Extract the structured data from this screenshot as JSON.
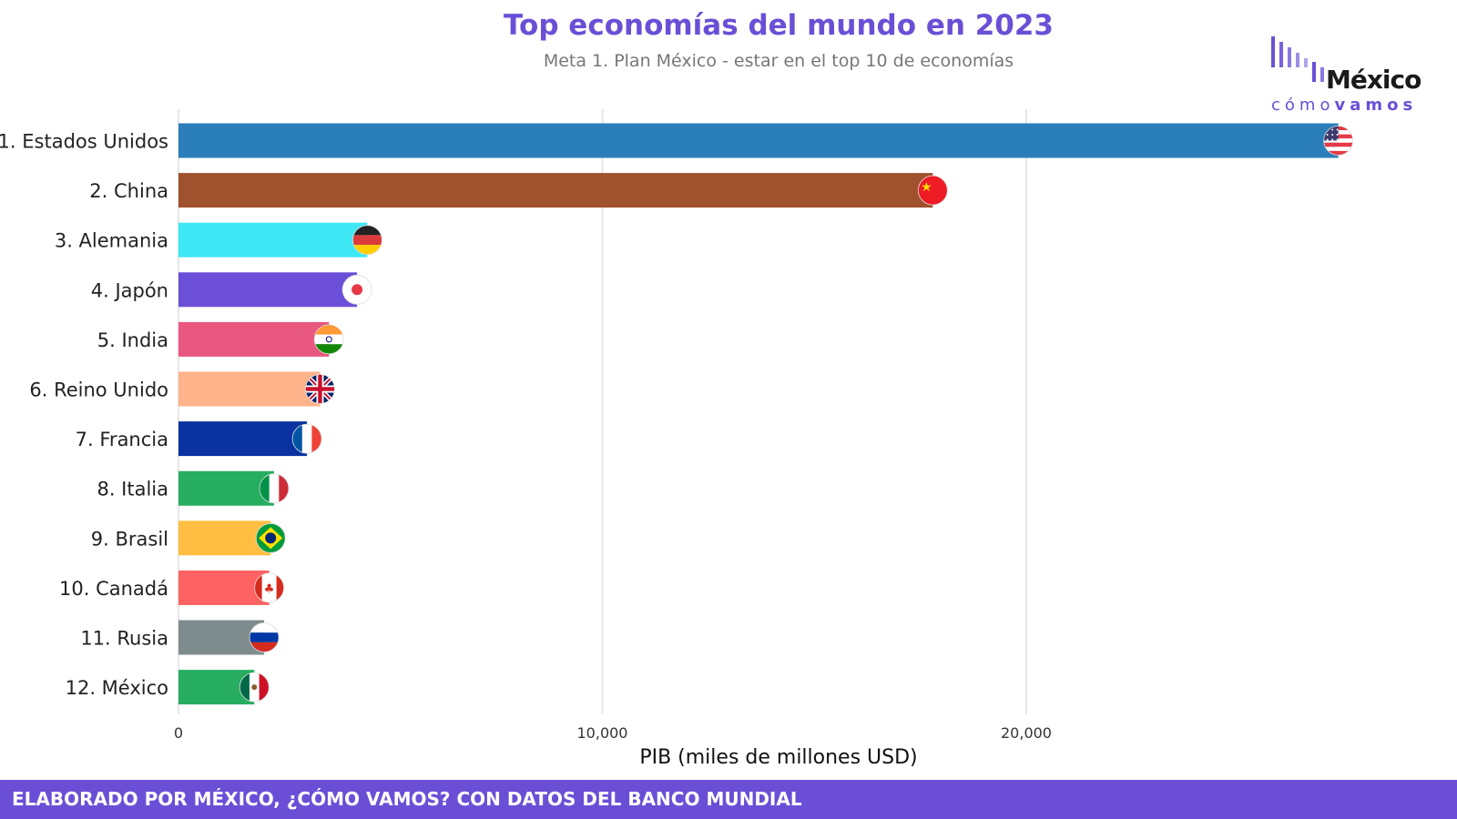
{
  "header": {
    "title": "Top economías del mundo en 2023",
    "subtitle": "Meta 1. Plan México - estar en el top 10 de economías"
  },
  "logo": {
    "word": "México",
    "sub_light": "cómo",
    "sub_bold": "vamos",
    "accent_color": "#6a4fd6"
  },
  "footer": {
    "text": "ELABORADO POR MÉXICO, ¿CÓMO VAMOS? CON DATOS DEL BANCO MUNDIAL"
  },
  "chart_data": {
    "type": "bar",
    "orientation": "horizontal",
    "title": "Top economías del mundo en 2023",
    "subtitle": "Meta 1. Plan México - estar en el top 10 de economías",
    "xlabel": "PIB (miles de millones USD)",
    "ylabel": "",
    "xlim": [
      0,
      30000
    ],
    "xticks": [
      0,
      10000,
      20000
    ],
    "xtick_labels": [
      "0",
      "10,000",
      "20,000"
    ],
    "grid": true,
    "categories": [
      "1. Estados Unidos",
      "2. China",
      "3. Alemania",
      "4. Japón",
      "5. India",
      "6. Reino Unido",
      "7. Francia",
      "8. Italia",
      "9. Brasil",
      "10. Canadá",
      "11. Rusia",
      "12. México"
    ],
    "values": [
      27361,
      17795,
      4456,
      4213,
      3550,
      3340,
      3031,
      2255,
      2174,
      2140,
      2021,
      1789
    ],
    "colors": [
      "#2a7fba",
      "#a0512d",
      "#3ee8f5",
      "#6b4fd8",
      "#e85880",
      "#ffb38a",
      "#0a32a0",
      "#27ad60",
      "#ffbe42",
      "#ff6262",
      "#7f8c8d",
      "#27ad60"
    ],
    "flags": [
      "us-flag-icon",
      "china-flag-icon",
      "germany-flag-icon",
      "japan-flag-icon",
      "india-flag-icon",
      "uk-flag-icon",
      "france-flag-icon",
      "italy-flag-icon",
      "brazil-flag-icon",
      "canada-flag-icon",
      "russia-flag-icon",
      "mexico-flag-icon"
    ]
  }
}
